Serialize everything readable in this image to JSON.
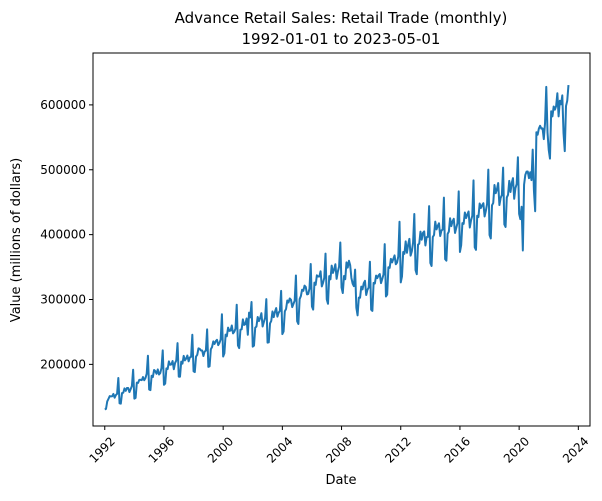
{
  "chart_data": {
    "type": "line",
    "title": "Advance Retail Sales: Retail Trade (monthly)",
    "subtitle": "1992-01-01 to 2023-05-01",
    "xlabel": "Date",
    "ylabel": "Value (millions of dollars)",
    "xlim": [
      "1991-03-15",
      "2024-10-15"
    ],
    "ylim": [
      105000,
      680000
    ],
    "x_ticks": [
      "1992",
      "1996",
      "2000",
      "2004",
      "2008",
      "2012",
      "2016",
      "2020",
      "2024"
    ],
    "y_ticks": [
      "200000",
      "300000",
      "400000",
      "500000",
      "600000"
    ],
    "grid": false,
    "legend": "none",
    "series": [
      {
        "color": "#1f77b4",
        "x": [
          "1992-01",
          "1992-02",
          "1992-03",
          "1992-04",
          "1992-05",
          "1992-06",
          "1992-07",
          "1992-08",
          "1992-09",
          "1992-10",
          "1992-11",
          "1992-12",
          "1993-01",
          "1993-02",
          "1993-03",
          "1993-04",
          "1993-05",
          "1993-06",
          "1993-07",
          "1993-08",
          "1993-09",
          "1993-10",
          "1993-11",
          "1993-12",
          "1994-01",
          "1994-02",
          "1994-03",
          "1994-04",
          "1994-05",
          "1994-06",
          "1994-07",
          "1994-08",
          "1994-09",
          "1994-10",
          "1994-11",
          "1994-12",
          "1995-01",
          "1995-02",
          "1995-03",
          "1995-04",
          "1995-05",
          "1995-06",
          "1995-07",
          "1995-08",
          "1995-09",
          "1995-10",
          "1995-11",
          "1995-12",
          "1996-01",
          "1996-02",
          "1996-03",
          "1996-04",
          "1996-05",
          "1996-06",
          "1996-07",
          "1996-08",
          "1996-09",
          "1996-10",
          "1996-11",
          "1996-12",
          "1997-01",
          "1997-02",
          "1997-03",
          "1997-04",
          "1997-05",
          "1997-06",
          "1997-07",
          "1997-08",
          "1997-09",
          "1997-10",
          "1997-11",
          "1997-12",
          "1998-01",
          "1998-02",
          "1998-03",
          "1998-04",
          "1998-05",
          "1998-06",
          "1998-07",
          "1998-08",
          "1998-09",
          "1998-10",
          "1998-11",
          "1998-12",
          "1999-01",
          "1999-02",
          "1999-03",
          "1999-04",
          "1999-05",
          "1999-06",
          "1999-07",
          "1999-08",
          "1999-09",
          "1999-10",
          "1999-11",
          "1999-12",
          "2000-01",
          "2000-02",
          "2000-03",
          "2000-04",
          "2000-05",
          "2000-06",
          "2000-07",
          "2000-08",
          "2000-09",
          "2000-10",
          "2000-11",
          "2000-12",
          "2001-01",
          "2001-02",
          "2001-03",
          "2001-04",
          "2001-05",
          "2001-06",
          "2001-07",
          "2001-08",
          "2001-09",
          "2001-10",
          "2001-11",
          "2001-12",
          "2002-01",
          "2002-02",
          "2002-03",
          "2002-04",
          "2002-05",
          "2002-06",
          "2002-07",
          "2002-08",
          "2002-09",
          "2002-10",
          "2002-11",
          "2002-12",
          "2003-01",
          "2003-02",
          "2003-03",
          "2003-04",
          "2003-05",
          "2003-06",
          "2003-07",
          "2003-08",
          "2003-09",
          "2003-10",
          "2003-11",
          "2003-12",
          "2004-01",
          "2004-02",
          "2004-03",
          "2004-04",
          "2004-05",
          "2004-06",
          "2004-07",
          "2004-08",
          "2004-09",
          "2004-10",
          "2004-11",
          "2004-12",
          "2005-01",
          "2005-02",
          "2005-03",
          "2005-04",
          "2005-05",
          "2005-06",
          "2005-07",
          "2005-08",
          "2005-09",
          "2005-10",
          "2005-11",
          "2005-12",
          "2006-01",
          "2006-02",
          "2006-03",
          "2006-04",
          "2006-05",
          "2006-06",
          "2006-07",
          "2006-08",
          "2006-09",
          "2006-10",
          "2006-11",
          "2006-12",
          "2007-01",
          "2007-02",
          "2007-03",
          "2007-04",
          "2007-05",
          "2007-06",
          "2007-07",
          "2007-08",
          "2007-09",
          "2007-10",
          "2007-11",
          "2007-12",
          "2008-01",
          "2008-02",
          "2008-03",
          "2008-04",
          "2008-05",
          "2008-06",
          "2008-07",
          "2008-08",
          "2008-09",
          "2008-10",
          "2008-11",
          "2008-12",
          "2009-01",
          "2009-02",
          "2009-03",
          "2009-04",
          "2009-05",
          "2009-06",
          "2009-07",
          "2009-08",
          "2009-09",
          "2009-10",
          "2009-11",
          "2009-12",
          "2010-01",
          "2010-02",
          "2010-03",
          "2010-04",
          "2010-05",
          "2010-06",
          "2010-07",
          "2010-08",
          "2010-09",
          "2010-10",
          "2010-11",
          "2010-12",
          "2011-01",
          "2011-02",
          "2011-03",
          "2011-04",
          "2011-05",
          "2011-06",
          "2011-07",
          "2011-08",
          "2011-09",
          "2011-10",
          "2011-11",
          "2011-12",
          "2012-01",
          "2012-02",
          "2012-03",
          "2012-04",
          "2012-05",
          "2012-06",
          "2012-07",
          "2012-08",
          "2012-09",
          "2012-10",
          "2012-11",
          "2012-12",
          "2013-01",
          "2013-02",
          "2013-03",
          "2013-04",
          "2013-05",
          "2013-06",
          "2013-07",
          "2013-08",
          "2013-09",
          "2013-10",
          "2013-11",
          "2013-12",
          "2014-01",
          "2014-02",
          "2014-03",
          "2014-04",
          "2014-05",
          "2014-06",
          "2014-07",
          "2014-08",
          "2014-09",
          "2014-10",
          "2014-11",
          "2014-12",
          "2015-01",
          "2015-02",
          "2015-03",
          "2015-04",
          "2015-05",
          "2015-06",
          "2015-07",
          "2015-08",
          "2015-09",
          "2015-10",
          "2015-11",
          "2015-12",
          "2016-01",
          "2016-02",
          "2016-03",
          "2016-04",
          "2016-05",
          "2016-06",
          "2016-07",
          "2016-08",
          "2016-09",
          "2016-10",
          "2016-11",
          "2016-12",
          "2017-01",
          "2017-02",
          "2017-03",
          "2017-04",
          "2017-05",
          "2017-06",
          "2017-07",
          "2017-08",
          "2017-09",
          "2017-10",
          "2017-11",
          "2017-12",
          "2018-01",
          "2018-02",
          "2018-03",
          "2018-04",
          "2018-05",
          "2018-06",
          "2018-07",
          "2018-08",
          "2018-09",
          "2018-10",
          "2018-11",
          "2018-12",
          "2019-01",
          "2019-02",
          "2019-03",
          "2019-04",
          "2019-05",
          "2019-06",
          "2019-07",
          "2019-08",
          "2019-09",
          "2019-10",
          "2019-11",
          "2019-12",
          "2020-01",
          "2020-02",
          "2020-03",
          "2020-04",
          "2020-05",
          "2020-06",
          "2020-07",
          "2020-08",
          "2020-09",
          "2020-10",
          "2020-11",
          "2020-12",
          "2021-01",
          "2021-02",
          "2021-03",
          "2021-04",
          "2021-05",
          "2021-06",
          "2021-07",
          "2021-08",
          "2021-09",
          "2021-10",
          "2021-11",
          "2021-12",
          "2022-01",
          "2022-02",
          "2022-03",
          "2022-04",
          "2022-05",
          "2022-06",
          "2022-07",
          "2022-08",
          "2022-09",
          "2022-10",
          "2022-11",
          "2022-12",
          "2023-01",
          "2023-02",
          "2023-03",
          "2023-04",
          "2023-05"
        ],
        "y": [
          130500,
          131400,
          142800,
          146800,
          151000,
          150600,
          150900,
          154400,
          148600,
          152700,
          154700,
          179000,
          140000,
          139500,
          155700,
          156300,
          162900,
          159200,
          163600,
          163500,
          157300,
          161900,
          166700,
          191700,
          147200,
          148400,
          171800,
          171400,
          176100,
          176200,
          175700,
          180400,
          175600,
          178900,
          185800,
          213300,
          161300,
          160300,
          182500,
          180500,
          191400,
          189400,
          185500,
          192200,
          184400,
          186600,
          194500,
          221600,
          168500,
          170500,
          193900,
          192800,
          204600,
          199400,
          199900,
          205100,
          192500,
          202000,
          206100,
          232700,
          181200,
          181000,
          204200,
          201200,
          213100,
          206200,
          209000,
          213600,
          204700,
          210800,
          211600,
          245600,
          189400,
          188200,
          212000,
          214700,
          224700,
          223900,
          221400,
          221400,
          212900,
          219700,
          221200,
          253900,
          196200,
          197000,
          223200,
          226800,
          235400,
          231500,
          235900,
          237900,
          229600,
          233100,
          238500,
          277200,
          212100,
          217100,
          245900,
          243500,
          256600,
          251600,
          252100,
          259900,
          247800,
          250300,
          254900,
          292000,
          229200,
          225100,
          253400,
          254000,
          269300,
          260800,
          262000,
          270700,
          245600,
          279700,
          272400,
          296200,
          227300,
          228900,
          256500,
          258400,
          273100,
          266700,
          271400,
          278900,
          258400,
          265200,
          271600,
          300500,
          233500,
          234000,
          263100,
          266900,
          281600,
          272800,
          281000,
          286700,
          273600,
          279700,
          282600,
          313300,
          246600,
          250800,
          281800,
          285400,
          298500,
          295400,
          301600,
          299500,
          288300,
          293300,
          298300,
          337100,
          266500,
          262300,
          300500,
          305200,
          315100,
          313400,
          321400,
          319200,
          307900,
          308600,
          316800,
          354800,
          289200,
          284400,
          326000,
          322600,
          337300,
          335400,
          335500,
          343500,
          320200,
          325800,
          333300,
          370800,
          300300,
          293400,
          336000,
          331100,
          352300,
          341000,
          346300,
          354300,
          331900,
          343000,
          350700,
          387900,
          318500,
          310000,
          336200,
          331300,
          357300,
          349200,
          359700,
          352900,
          333100,
          324400,
          320600,
          346100,
          287400,
          275600,
          302900,
          302700,
          319900,
          315600,
          325100,
          328800,
          306900,
          315000,
          318300,
          358300,
          284400,
          282500,
          325700,
          324600,
          336800,
          333000,
          337200,
          339300,
          325300,
          331700,
          338600,
          385300,
          304700,
          307600,
          349800,
          348800,
          362700,
          357200,
          362700,
          367900,
          354300,
          357000,
          366300,
          419800,
          326400,
          335600,
          373200,
          370500,
          389700,
          372000,
          384300,
          393500,
          367600,
          374400,
          387800,
          431900,
          345300,
          339000,
          384500,
          386100,
          404600,
          392200,
          402700,
          405000,
          383300,
          396200,
          396500,
          443900,
          356300,
          351700,
          396400,
          399500,
          420100,
          408100,
          413600,
          417500,
          397800,
          406400,
          407800,
          457000,
          362200,
          359900,
          401100,
          404600,
          425200,
          413100,
          420600,
          424400,
          402600,
          410300,
          417700,
          466700,
          373300,
          383700,
          417800,
          416600,
          434100,
          425600,
          431100,
          435700,
          411000,
          422000,
          428900,
          483600,
          380400,
          376600,
          429200,
          427100,
          448000,
          441100,
          445500,
          448400,
          428000,
          436600,
          447100,
          500200,
          399300,
          394100,
          445200,
          448900,
          476500,
          463900,
          469600,
          479500,
          445600,
          456600,
          461100,
          503300,
          415900,
          411800,
          457300,
          461400,
          482900,
          465700,
          479600,
          487100,
          455300,
          471800,
          478000,
          519300,
          432000,
          423900,
          443000,
          375600,
          476800,
          492000,
          497200,
          497300,
          487000,
          496200,
          484000,
          531000,
          467600,
          436100,
          557900,
          554000,
          563500,
          567800,
          563400,
          563800,
          547200,
          572000,
          627800,
          558000,
          530500,
          517200,
          590300,
          582300,
          597600,
          592600,
          598200,
          617900,
          582300,
          606400,
          601000,
          614600,
          556400,
          528700,
          598200,
          606300,
          630600
        ]
      }
    ]
  }
}
